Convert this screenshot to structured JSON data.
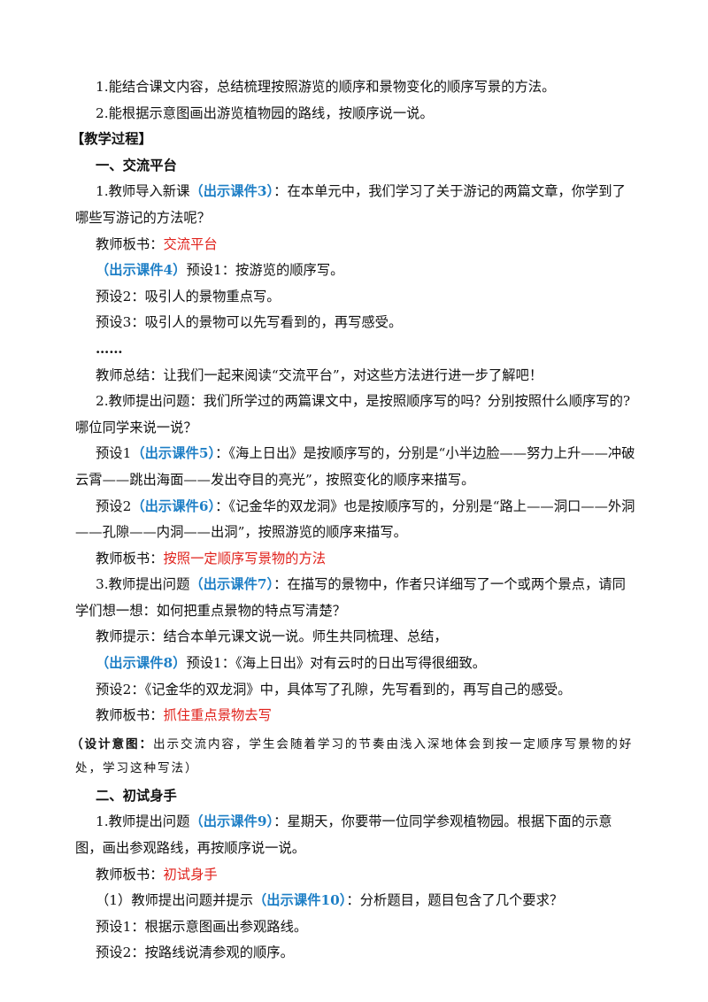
{
  "paragraphs": [
    [
      "1.能结合课文内容，总结梳理按照游览的顺序和景物变化的顺序写景的方法。"
    ],
    [
      "2.能根据示意图画出游览植物园的路线，按顺序说一说。"
    ],
    [
      "【教学过程】"
    ],
    [
      "一、交流平台"
    ],
    [
      "1.教师导入新课",
      "（出示课件3）",
      "：在本单元中，我们学习了关于游记的两篇文章，你学到了哪些写游记的方法呢？"
    ],
    [
      "教师板书：",
      "交流平台"
    ],
    [
      "（出示课件4）",
      "预设1：按游览的顺序写。"
    ],
    [
      "预设2：吸引人的景物重点写。"
    ],
    [
      "预设3：吸引人的景物可以先写看到的，再写感受。"
    ],
    [
      "……"
    ],
    [
      "教师总结：让我们一起来阅读“交流平台”，对这些方法进行进一步了解吧！"
    ],
    [
      "2.教师提出问题：我们所学过的两篇课文中，是按照顺序写的吗？分别按照什么顺序写的?哪位同学来说一说？"
    ],
    [
      "预设1",
      "（出示课件5）",
      "：《海上日出》是按顺序写的，分别是“小半边脸——努力上升——冲破云霄——跳出海面——发出夺目的亮光”，按照变化的顺序来描写。"
    ],
    [
      "预设2",
      "（出示课件6）",
      "：《记金华的双龙洞》也是按顺序写的，分别是“路上——洞口——外洞——孔隙——内洞——出洞”，按照游览的顺序来描写。"
    ],
    [
      "教师板书：",
      "按照一定顺序写景物的方法"
    ],
    [
      "3.教师提出问题",
      "（出示课件7）",
      "：在描写的景物中，作者只详细写了一个或两个景点，请同学们想一想：如何把重点景物的特点写清楚？"
    ],
    [
      "教师提示：结合本单元课文说一说。师生共同梳理、总结，"
    ],
    [
      "（出示课件8）",
      "预设1：《海上日出》对有云时的日出写得很细致。"
    ],
    [
      "预设2：《记金华的双龙洞》中，具体写了孔隙，先写看到的，再写自己的感受。"
    ],
    [
      "教师板书：",
      "抓住重点景物去写"
    ],
    [
      "（设计意图：",
      "出示交流内容，学生会随着学习的节奏由浅入深地体会到按一定顺序写景物的好处，学习这种写法）"
    ],
    [
      "二、初试身手"
    ],
    [
      "1.教师提出问题",
      "（出示课件9）",
      "：星期天，你要带一位同学参观植物园。根据下面的示意图，画出参观路线，再按顺序说一说。"
    ],
    [
      "教师板书：",
      "初试身手"
    ],
    [
      "（1）教师提出问题并提示",
      "（出示课件10）",
      "：分析题目，题目包含了几个要求？"
    ],
    [
      "预设1：根据示意图画出参观路线。"
    ],
    [
      "预设2：按路线说清参观的顺序。"
    ]
  ]
}
